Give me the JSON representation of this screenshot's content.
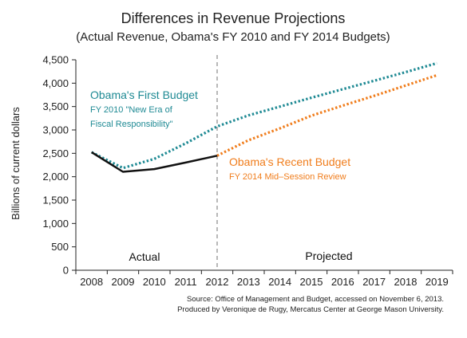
{
  "chart_data": {
    "type": "line",
    "title": "Differences in Revenue Projections",
    "subtitle": "(Actual Revenue, Obama's FY 2010 and FY 2014 Budgets)",
    "ylabel": "Billions of current dollars",
    "xlabel": "",
    "ylim": [
      0,
      4500
    ],
    "yticks": [
      "0",
      "500",
      "1,000",
      "1,500",
      "2,000",
      "2,500",
      "3,000",
      "3,500",
      "4,000",
      "4,500"
    ],
    "categories": [
      "2008",
      "2009",
      "2010",
      "2011",
      "2012",
      "2013",
      "2014",
      "2015",
      "2016",
      "2017",
      "2018",
      "2019"
    ],
    "grid": false,
    "divider_year": "2012",
    "region_labels": {
      "left": "Actual",
      "right": "Projected"
    },
    "series": [
      {
        "name": "Obama's First Budget",
        "sublabel": [
          "FY 2010 \"New Era of",
          "Fiscal Responsibility\""
        ],
        "style": "dotted",
        "color": "#1f8a94",
        "values": [
          2524,
          2185,
          2381,
          2713,
          3075,
          3312,
          3500,
          3688,
          3871,
          4051,
          4235,
          4426
        ]
      },
      {
        "name": "Obama's Recent Budget",
        "sublabel": [
          "FY 2014 Mid–Session Review"
        ],
        "style": "dotted",
        "color": "#f07d1c",
        "values": [
          null,
          null,
          null,
          null,
          2450,
          2780,
          3034,
          3305,
          3520,
          3730,
          3950,
          4170
        ]
      },
      {
        "name": "",
        "style": "solid",
        "color": "#111111",
        "values": [
          2524,
          2105,
          2163,
          2303,
          2450,
          null,
          null,
          null,
          null,
          null,
          null,
          null
        ]
      }
    ]
  },
  "source_lines": [
    "Source: Office of Management and Budget, accessed on November 6, 2013.",
    "Produced by Veronique de Rugy, Mercatus Center at George Mason University."
  ]
}
